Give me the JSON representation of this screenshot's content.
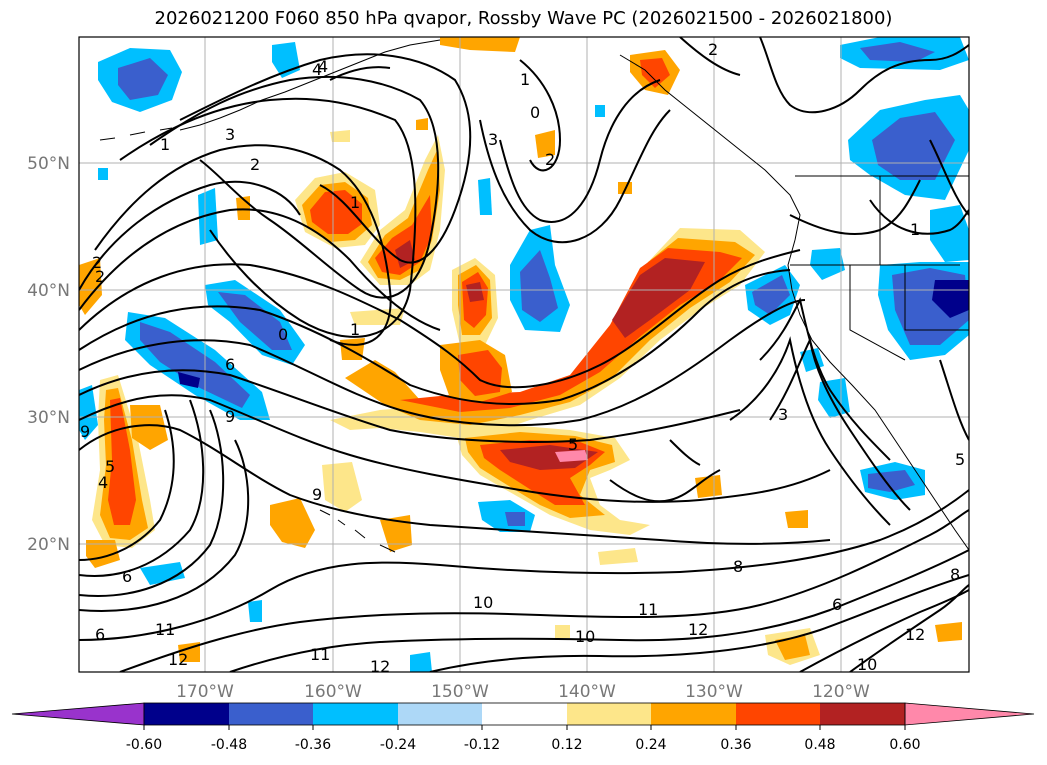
{
  "title": "2026021200 F060 850 hPa qvapor, Rossby Wave PC (2026021500 - 2026021800)",
  "longitude_labels": [
    "170°W",
    "160°W",
    "150°W",
    "140°W",
    "130°W",
    "120°W"
  ],
  "latitude_labels": [
    "50°N",
    "40°N",
    "30°N",
    "20°N"
  ],
  "contour_labels": [
    "2",
    "4",
    "1",
    "3",
    "0",
    "3",
    "2",
    "2",
    "1",
    "2",
    "1",
    "2",
    "0",
    "1",
    "6",
    "9",
    "9",
    "4",
    "5",
    "6",
    "6",
    "10",
    "11",
    "12",
    "11",
    "12",
    "10",
    "12",
    "8",
    "11",
    "12",
    "10",
    "6",
    "9",
    "5",
    "4",
    "3",
    "5",
    "1",
    "8"
  ],
  "colorbar": {
    "tick_labels": [
      "-0.60",
      "-0.48",
      "-0.36",
      "-0.24",
      "-0.12",
      "0.12",
      "0.24",
      "0.36",
      "0.48",
      "0.60"
    ],
    "colors": [
      "#9933cc",
      "#00008b",
      "#3a5fcd",
      "#00bfff",
      "#add8f7",
      "#ffffff",
      "#fde68a",
      "#ffa500",
      "#ff4500",
      "#b22222",
      "#ff88aa"
    ]
  }
}
